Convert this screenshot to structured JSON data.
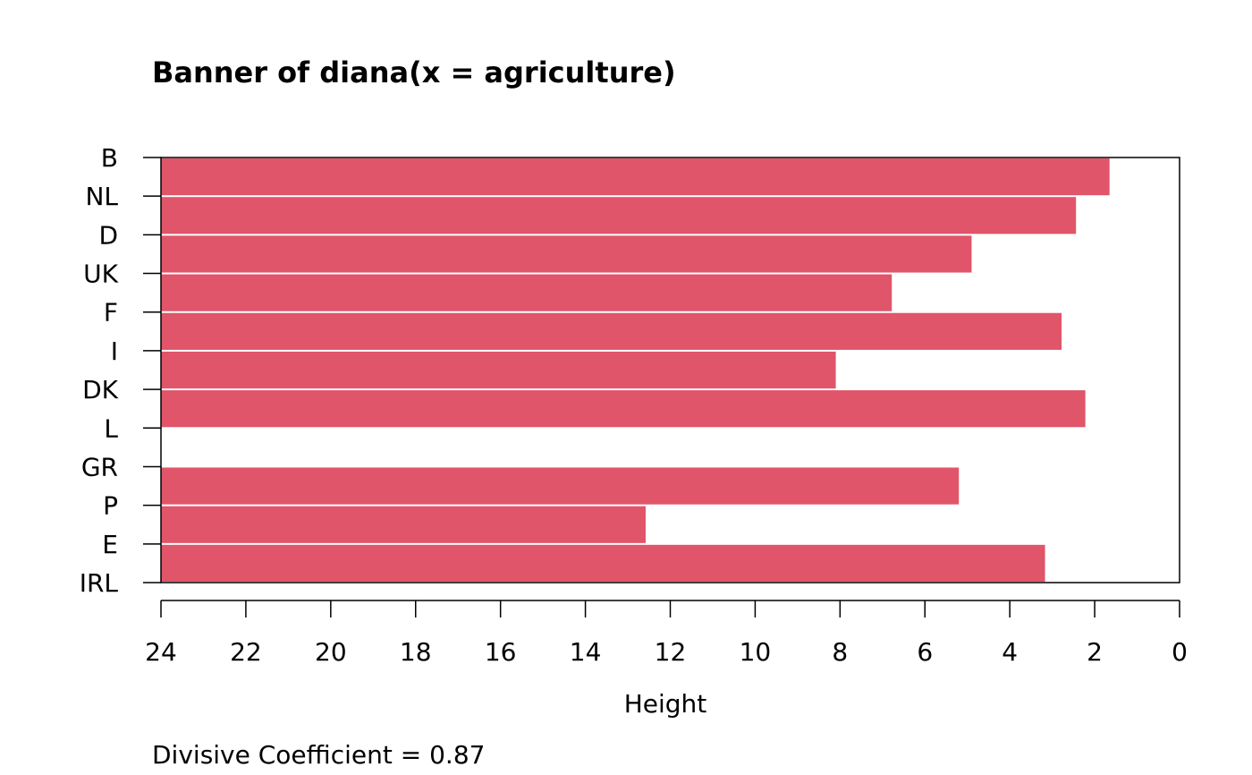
{
  "chart_data": {
    "type": "bar",
    "orientation": "horizontal",
    "title": "Banner of  diana(x = agriculture)",
    "xlabel": "Height",
    "ylabel": "",
    "xlim": [
      24,
      0
    ],
    "x_ticks": [
      "24",
      "22",
      "20",
      "18",
      "16",
      "14",
      "12",
      "10",
      "8",
      "6",
      "4",
      "2",
      "0"
    ],
    "categories": [
      "B",
      "NL",
      "D",
      "UK",
      "F",
      "I",
      "DK",
      "L",
      "GR",
      "P",
      "E",
      "IRL"
    ],
    "merge_heights": [
      1.65,
      2.44,
      4.9,
      6.78,
      2.78,
      8.1,
      2.22,
      24.0,
      5.2,
      12.58,
      3.17
    ],
    "bar_color": "#E05569",
    "footnote": "Divisive Coefficient =  0.87"
  }
}
